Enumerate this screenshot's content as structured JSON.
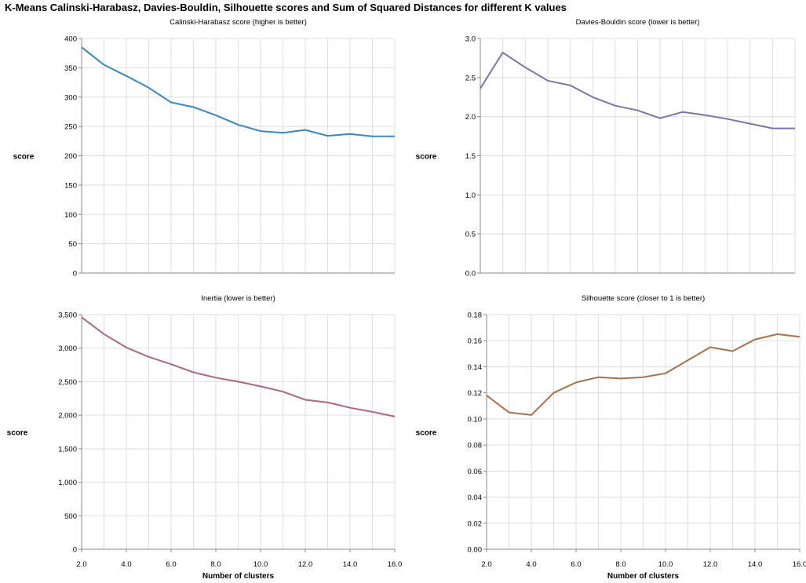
{
  "title": "K-Means Calinski-Harabasz, Davies-Bouldin, Silhouette scores and Sum of Squared Distances for different K values",
  "chart_data": [
    {
      "type": "line",
      "title": "Calinski-Harabasz score (higher is better)",
      "xlabel": "",
      "ylabel": "score",
      "x": [
        2,
        3,
        4,
        5,
        6,
        7,
        8,
        9,
        10,
        11,
        12,
        13,
        14,
        15,
        16
      ],
      "values": [
        385,
        355,
        336,
        316,
        291,
        283,
        269,
        253,
        242,
        239,
        244,
        234,
        237,
        233,
        233
      ],
      "xlim": [
        2,
        16
      ],
      "ylim": [
        0,
        400
      ],
      "yticks": [
        0,
        50,
        100,
        150,
        200,
        250,
        300,
        350,
        400
      ],
      "ytick_labels": [
        "0",
        "50",
        "100",
        "150",
        "200",
        "250",
        "300",
        "350",
        "400"
      ],
      "xticks": [],
      "xtick_labels": [],
      "color": "#3a86bd",
      "grid": true
    },
    {
      "type": "line",
      "title": "Davies-Bouldin score (lower is better)",
      "xlabel": "",
      "ylabel": "score",
      "x": [
        2,
        3,
        4,
        5,
        6,
        7,
        8,
        9,
        10,
        11,
        12,
        13,
        14,
        15,
        16
      ],
      "values": [
        2.36,
        2.82,
        2.63,
        2.46,
        2.4,
        2.25,
        2.14,
        2.08,
        1.98,
        2.06,
        2.02,
        1.97,
        1.91,
        1.85,
        1.85
      ],
      "xlim": [
        2,
        16
      ],
      "ylim": [
        0,
        3
      ],
      "yticks": [
        0,
        0.5,
        1,
        1.5,
        2,
        2.5,
        3
      ],
      "ytick_labels": [
        "0.0",
        "0.5",
        "1.0",
        "1.5",
        "2.0",
        "2.5",
        "3.0"
      ],
      "xticks": [],
      "xtick_labels": [],
      "color": "#7b74a8",
      "grid": true
    },
    {
      "type": "line",
      "title": "Inertia (lower is better)",
      "xlabel": "Number of clusters",
      "ylabel": "score",
      "x": [
        2,
        3,
        4,
        5,
        6,
        7,
        8,
        9,
        10,
        11,
        12,
        13,
        14,
        15,
        16
      ],
      "values": [
        3460,
        3210,
        3010,
        2870,
        2760,
        2640,
        2560,
        2500,
        2430,
        2350,
        2230,
        2190,
        2110,
        2050,
        1980
      ],
      "xlim": [
        2,
        16
      ],
      "ylim": [
        0,
        3500
      ],
      "yticks": [
        0,
        500,
        1000,
        1500,
        2000,
        2500,
        3000,
        3500
      ],
      "ytick_labels": [
        "0",
        "500",
        "1,000",
        "1,500",
        "2,000",
        "2,500",
        "3,000",
        "3,500"
      ],
      "xticks": [
        2,
        4,
        6,
        8,
        10,
        12,
        14,
        16
      ],
      "xtick_labels": [
        "2.0",
        "4.0",
        "6.0",
        "8.0",
        "10.0",
        "12.0",
        "14.0",
        "16.0"
      ],
      "color": "#a86a7e",
      "grid": true
    },
    {
      "type": "line",
      "title": "Silhouette score (closer to 1 is better)",
      "xlabel": "Number of clusters",
      "ylabel": "score",
      "x": [
        2,
        3,
        4,
        5,
        6,
        7,
        8,
        9,
        10,
        11,
        12,
        13,
        14,
        15,
        16
      ],
      "values": [
        0.118,
        0.105,
        0.103,
        0.12,
        0.128,
        0.132,
        0.131,
        0.132,
        0.135,
        0.145,
        0.155,
        0.152,
        0.161,
        0.165,
        0.163
      ],
      "xlim": [
        2,
        16
      ],
      "ylim": [
        0,
        0.18
      ],
      "yticks": [
        0,
        0.02,
        0.04,
        0.06,
        0.08,
        0.1,
        0.12,
        0.14,
        0.16,
        0.18
      ],
      "ytick_labels": [
        "0.00",
        "0.02",
        "0.04",
        "0.06",
        "0.08",
        "0.10",
        "0.12",
        "0.14",
        "0.16",
        "0.18"
      ],
      "xticks": [
        2,
        4,
        6,
        8,
        10,
        12,
        14,
        16
      ],
      "xtick_labels": [
        "2.0",
        "4.0",
        "6.0",
        "8.0",
        "10.0",
        "12.0",
        "14.0",
        "16.0"
      ],
      "color": "#a6714a",
      "grid": true
    }
  ]
}
